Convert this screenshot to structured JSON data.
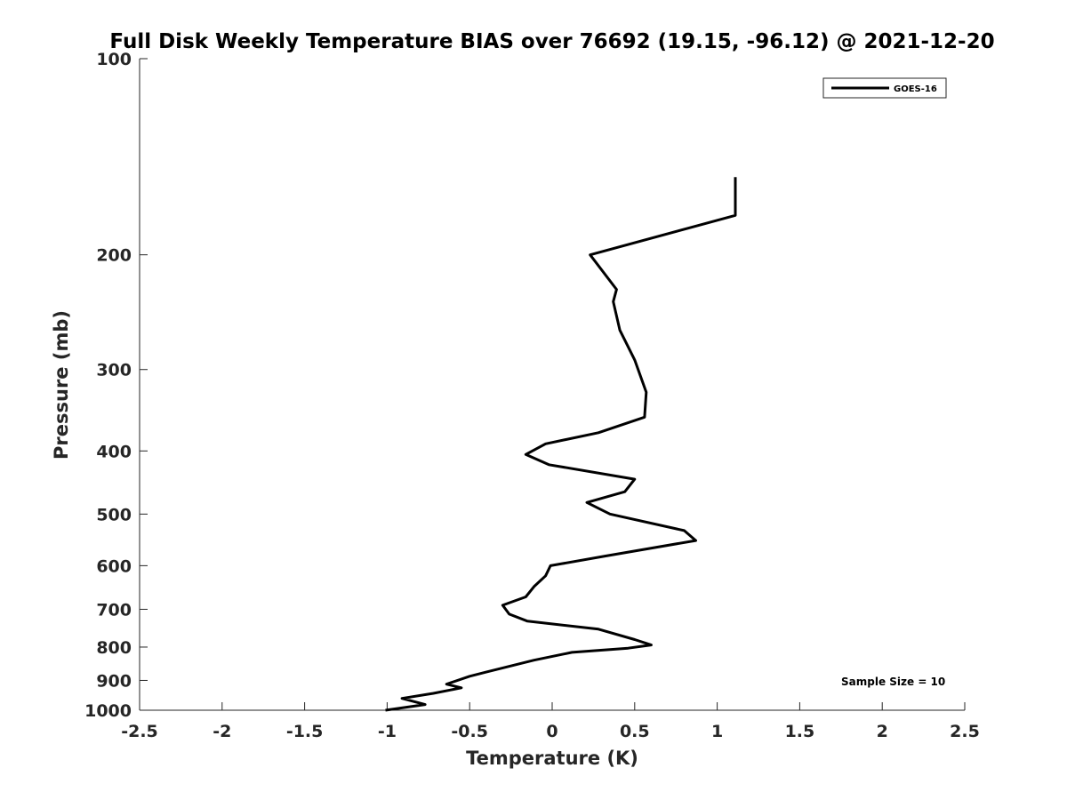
{
  "chart_data": {
    "type": "line",
    "title": "Full Disk Weekly Temperature BIAS over 76692 (19.15, -96.12) @ 2021-12-20",
    "xlabel": "Temperature (K)",
    "ylabel": "Pressure (mb)",
    "xlim": [
      -2.5,
      2.5
    ],
    "ylim": [
      1000,
      100
    ],
    "y_scale": "log",
    "y_reversed": true,
    "x_ticks": [
      -2.5,
      -2,
      -1.5,
      -1,
      -0.5,
      0,
      0.5,
      1,
      1.5,
      2,
      2.5
    ],
    "x_tick_labels": [
      "-2.5",
      "-2",
      "-1.5",
      "-1",
      "-0.5",
      "0",
      "0.5",
      "1",
      "1.5",
      "2",
      "2.5"
    ],
    "y_ticks": [
      100,
      200,
      300,
      400,
      500,
      600,
      700,
      800,
      900,
      1000
    ],
    "y_tick_labels": [
      "100",
      "200",
      "300",
      "400",
      "500",
      "600",
      "700",
      "800",
      "900",
      "1000"
    ],
    "grid": false,
    "legend_position": "top-right",
    "annotation": "Sample Size = 10",
    "series": [
      {
        "name": "GOES-16",
        "color": "#000000",
        "points": [
          {
            "x": 1.11,
            "p": 152
          },
          {
            "x": 1.11,
            "p": 174
          },
          {
            "x": 0.23,
            "p": 200
          },
          {
            "x": 0.39,
            "p": 226
          },
          {
            "x": 0.37,
            "p": 236
          },
          {
            "x": 0.41,
            "p": 261
          },
          {
            "x": 0.5,
            "p": 290
          },
          {
            "x": 0.57,
            "p": 325
          },
          {
            "x": 0.56,
            "p": 355
          },
          {
            "x": 0.28,
            "p": 375
          },
          {
            "x": -0.04,
            "p": 390
          },
          {
            "x": -0.16,
            "p": 405
          },
          {
            "x": -0.02,
            "p": 420
          },
          {
            "x": 0.5,
            "p": 442
          },
          {
            "x": 0.44,
            "p": 462
          },
          {
            "x": 0.21,
            "p": 480
          },
          {
            "x": 0.35,
            "p": 500
          },
          {
            "x": 0.8,
            "p": 530
          },
          {
            "x": 0.87,
            "p": 549
          },
          {
            "x": 0.32,
            "p": 580
          },
          {
            "x": -0.01,
            "p": 600
          },
          {
            "x": -0.04,
            "p": 622
          },
          {
            "x": -0.11,
            "p": 646
          },
          {
            "x": -0.16,
            "p": 670
          },
          {
            "x": -0.3,
            "p": 690
          },
          {
            "x": -0.26,
            "p": 712
          },
          {
            "x": -0.15,
            "p": 730
          },
          {
            "x": 0.28,
            "p": 751
          },
          {
            "x": 0.5,
            "p": 779
          },
          {
            "x": 0.6,
            "p": 794
          },
          {
            "x": 0.46,
            "p": 803
          },
          {
            "x": 0.12,
            "p": 815
          },
          {
            "x": -0.11,
            "p": 838
          },
          {
            "x": -0.4,
            "p": 874
          },
          {
            "x": -0.5,
            "p": 887
          },
          {
            "x": -0.64,
            "p": 912
          },
          {
            "x": -0.55,
            "p": 924
          },
          {
            "x": -0.72,
            "p": 942
          },
          {
            "x": -0.91,
            "p": 959
          },
          {
            "x": -0.77,
            "p": 980
          },
          {
            "x": -1.01,
            "p": 1000
          }
        ]
      }
    ]
  }
}
